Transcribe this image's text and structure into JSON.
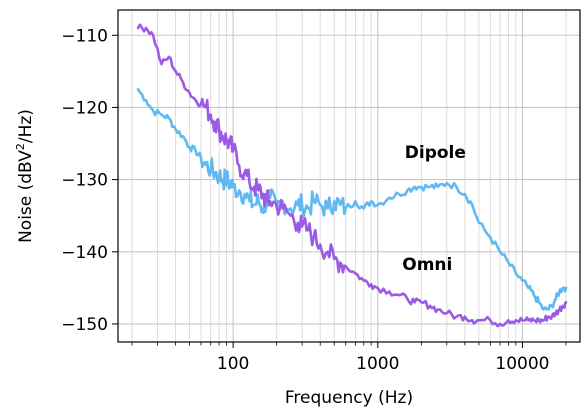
{
  "chart_data": {
    "type": "line",
    "title": "",
    "xlabel": "Frequency (Hz)",
    "ylabel_main": "Noise (dBV",
    "ylabel_sup": "2",
    "ylabel_tail": "/Hz)",
    "xscale": "log",
    "xlim": [
      16,
      25000
    ],
    "ylim": [
      -152.5,
      -106.5
    ],
    "grid": true,
    "legend": null,
    "x_ticks": [
      100,
      1000,
      10000
    ],
    "x_tick_labels": [
      "100",
      "1000",
      "10000"
    ],
    "y_ticks": [
      -110,
      -120,
      -130,
      -140,
      -150
    ],
    "y_tick_labels": [
      "−110",
      "−120",
      "−130",
      "−140",
      "−150"
    ],
    "annotations": [
      {
        "text": "Dipole",
        "x": 2500,
        "y": -127
      },
      {
        "text": "Omni",
        "x": 2200,
        "y": -142.5
      }
    ],
    "series": [
      {
        "name": "Dipole",
        "color": "#62b9f2",
        "x": [
          22,
          25,
          28,
          32,
          36,
          40,
          45,
          50,
          55,
          60,
          65,
          70,
          75,
          80,
          85,
          90,
          95,
          100,
          110,
          120,
          130,
          140,
          150,
          160,
          170,
          180,
          200,
          220,
          250,
          280,
          300,
          330,
          360,
          400,
          450,
          500,
          550,
          600,
          700,
          800,
          900,
          1000,
          1200,
          1400,
          1600,
          1800,
          2000,
          2300,
          2600,
          3000,
          3500,
          4000,
          4500,
          5000,
          6000,
          7000,
          8000,
          9000,
          10000,
          11000,
          12000,
          13000,
          14000,
          15000,
          16000,
          17000,
          18000,
          19000,
          20000
        ],
        "values": [
          -117.5,
          -119,
          -120.5,
          -121,
          -121.5,
          -123,
          -124,
          -125.5,
          -126,
          -127,
          -128,
          -128.5,
          -129,
          -129.5,
          -130,
          -130,
          -130.5,
          -131,
          -131.5,
          -132,
          -133,
          -133.5,
          -133,
          -134,
          -133,
          -132.5,
          -134,
          -133,
          -134,
          -133.5,
          -133.5,
          -134,
          -133,
          -133.5,
          -134,
          -133,
          -133.5,
          -134,
          -133,
          -134,
          -133,
          -133.5,
          -132.5,
          -132,
          -131.5,
          -131,
          -131,
          -131,
          -131,
          -130.5,
          -131,
          -132,
          -133.5,
          -136,
          -138,
          -140,
          -141.5,
          -143,
          -144,
          -145,
          -146,
          -147,
          -148,
          -148,
          -147.5,
          -146.5,
          -145.5,
          -145,
          -145
        ]
      },
      {
        "name": "Omni",
        "color": "#9b5be6",
        "x": [
          22,
          25,
          28,
          32,
          36,
          40,
          45,
          50,
          55,
          60,
          65,
          70,
          75,
          80,
          85,
          90,
          95,
          100,
          110,
          120,
          130,
          140,
          150,
          160,
          170,
          180,
          200,
          220,
          250,
          280,
          300,
          330,
          360,
          400,
          450,
          500,
          550,
          600,
          700,
          800,
          900,
          1000,
          1200,
          1400,
          1600,
          1800,
          2000,
          2300,
          2600,
          3000,
          3500,
          4000,
          4500,
          5000,
          6000,
          7000,
          8000,
          9000,
          10000,
          11000,
          12000,
          13000,
          14000,
          15000,
          16000,
          17000,
          18000,
          19000,
          20000
        ],
        "values": [
          -109,
          -109,
          -110,
          -114,
          -113,
          -115,
          -116.5,
          -118,
          -119,
          -119.5,
          -120,
          -121,
          -122,
          -123,
          -124,
          -124.5,
          -125,
          -126,
          -128,
          -129,
          -130.5,
          -131,
          -131.5,
          -132,
          -133,
          -133,
          -133.5,
          -134,
          -135,
          -136,
          -136.5,
          -137,
          -138,
          -139,
          -140,
          -141,
          -141.5,
          -142,
          -143,
          -144,
          -144.5,
          -145,
          -145.5,
          -146,
          -146.5,
          -147,
          -147,
          -147.5,
          -148,
          -148.5,
          -149,
          -149,
          -149.5,
          -149.5,
          -149.5,
          -150,
          -149.5,
          -149.5,
          -149.5,
          -149.5,
          -149.5,
          -149.5,
          -149.5,
          -149,
          -149,
          -148.5,
          -148,
          -147.5,
          -147
        ]
      }
    ]
  }
}
